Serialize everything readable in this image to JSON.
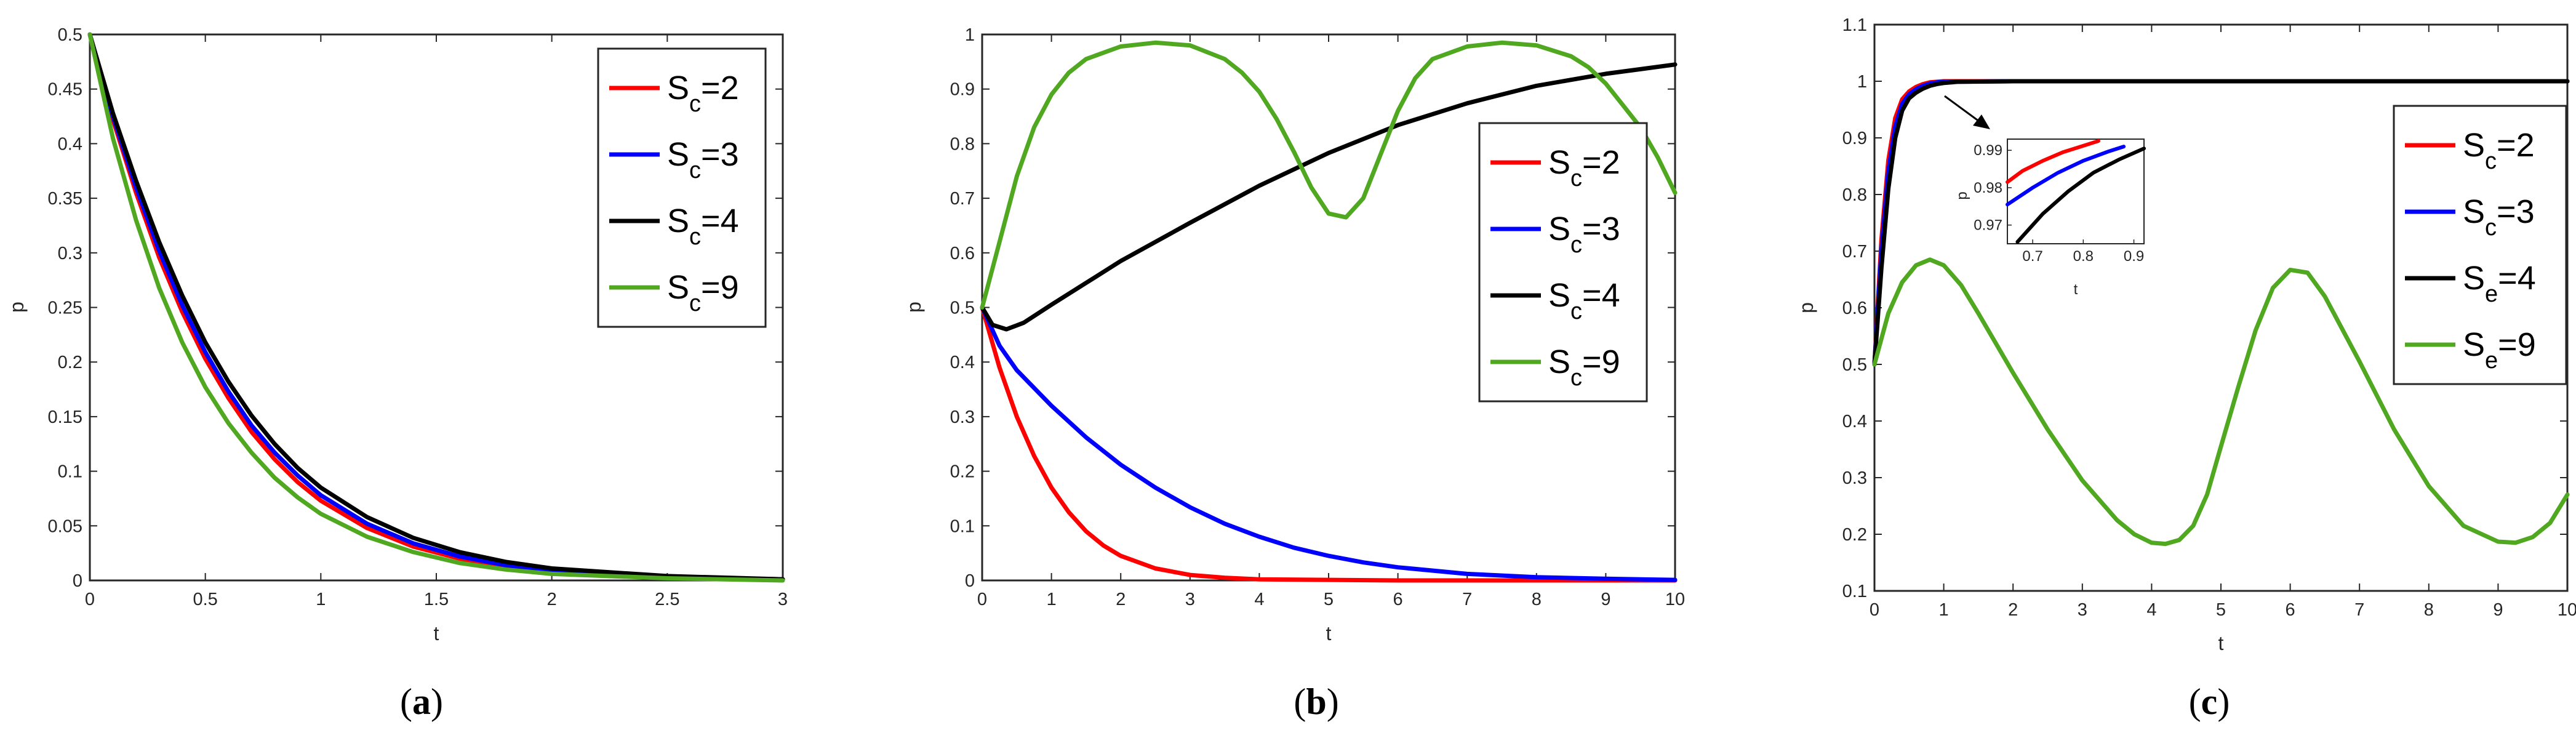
{
  "chart_data": [
    {
      "type": "line",
      "caption_letter": "a",
      "xlabel": "t",
      "ylabel": "p",
      "xlim": [
        0,
        3
      ],
      "ylim": [
        0,
        0.5
      ],
      "xticks": [
        "0",
        "0.5",
        "1",
        "1.5",
        "2",
        "2.5",
        "3"
      ],
      "yticks": [
        "0",
        "0.05",
        "0.1",
        "0.15",
        "0.2",
        "0.25",
        "0.3",
        "0.35",
        "0.4",
        "0.45",
        "0.5"
      ],
      "grid": false,
      "legend": "top-right",
      "legend_prefix": "S",
      "series": [
        {
          "name": "Sc=2",
          "letter": "c",
          "value": "=2",
          "color": "#ff0000",
          "x": [
            0,
            0.1,
            0.2,
            0.3,
            0.4,
            0.5,
            0.6,
            0.7,
            0.8,
            0.9,
            1.0,
            1.2,
            1.4,
            1.6,
            1.8,
            2.0,
            2.5,
            3.0
          ],
          "y": [
            0.5,
            0.422,
            0.355,
            0.296,
            0.246,
            0.203,
            0.167,
            0.136,
            0.111,
            0.09,
            0.073,
            0.048,
            0.031,
            0.02,
            0.013,
            0.008,
            0.003,
            0.001
          ]
        },
        {
          "name": "Sc=3",
          "letter": "c",
          "value": "=3",
          "color": "#0000ff",
          "x": [
            0,
            0.1,
            0.2,
            0.3,
            0.4,
            0.5,
            0.6,
            0.7,
            0.8,
            0.9,
            1.0,
            1.2,
            1.4,
            1.6,
            1.8,
            2.0,
            2.5,
            3.0
          ],
          "y": [
            0.5,
            0.425,
            0.36,
            0.302,
            0.252,
            0.209,
            0.173,
            0.142,
            0.117,
            0.096,
            0.078,
            0.052,
            0.034,
            0.022,
            0.014,
            0.009,
            0.003,
            0.001
          ]
        },
        {
          "name": "Sc=4",
          "letter": "c",
          "value": "=4",
          "color": "#000000",
          "x": [
            0,
            0.1,
            0.2,
            0.3,
            0.4,
            0.5,
            0.6,
            0.7,
            0.8,
            0.9,
            1.0,
            1.2,
            1.4,
            1.6,
            1.8,
            2.0,
            2.5,
            3.0
          ],
          "y": [
            0.5,
            0.428,
            0.366,
            0.31,
            0.261,
            0.218,
            0.182,
            0.151,
            0.125,
            0.103,
            0.085,
            0.058,
            0.039,
            0.026,
            0.017,
            0.011,
            0.004,
            0.001
          ]
        },
        {
          "name": "Sc=9",
          "letter": "c",
          "value": "=9",
          "color": "#4fa81f",
          "x": [
            0,
            0.1,
            0.2,
            0.3,
            0.4,
            0.5,
            0.6,
            0.7,
            0.8,
            0.9,
            1.0,
            1.2,
            1.4,
            1.6,
            1.8,
            2.0,
            2.5,
            3.0
          ],
          "y": [
            0.5,
            0.405,
            0.33,
            0.268,
            0.218,
            0.177,
            0.144,
            0.117,
            0.094,
            0.076,
            0.061,
            0.04,
            0.026,
            0.016,
            0.01,
            0.006,
            0.002,
            0.0
          ]
        }
      ]
    },
    {
      "type": "line",
      "caption_letter": "b",
      "xlabel": "t",
      "ylabel": "p",
      "xlim": [
        0,
        10
      ],
      "ylim": [
        0,
        1
      ],
      "xticks": [
        "0",
        "1",
        "2",
        "3",
        "4",
        "5",
        "6",
        "7",
        "8",
        "9",
        "10"
      ],
      "yticks": [
        "0",
        "0.1",
        "0.2",
        "0.3",
        "0.4",
        "0.5",
        "0.6",
        "0.7",
        "0.8",
        "0.9",
        "1"
      ],
      "grid": false,
      "legend": "right",
      "legend_prefix": "S",
      "series": [
        {
          "name": "Sc=2",
          "letter": "c",
          "value": "=2",
          "color": "#ff0000",
          "x": [
            0,
            0.25,
            0.5,
            0.75,
            1.0,
            1.25,
            1.5,
            1.75,
            2.0,
            2.5,
            3.0,
            3.5,
            4.0,
            5.0,
            6.0,
            7.0,
            8.0,
            9.0,
            10.0
          ],
          "y": [
            0.5,
            0.39,
            0.3,
            0.228,
            0.17,
            0.125,
            0.09,
            0.064,
            0.045,
            0.022,
            0.01,
            0.005,
            0.002,
            0.001,
            0.0,
            0.0,
            0.0,
            0.0,
            0.0
          ]
        },
        {
          "name": "Sc=3",
          "letter": "c",
          "value": "=3",
          "color": "#0000ff",
          "x": [
            0,
            0.25,
            0.5,
            1.0,
            1.5,
            2.0,
            2.5,
            3.0,
            3.5,
            4.0,
            4.5,
            5.0,
            5.5,
            6.0,
            7.0,
            8.0,
            9.0,
            10.0
          ],
          "y": [
            0.5,
            0.43,
            0.385,
            0.32,
            0.262,
            0.212,
            0.17,
            0.134,
            0.104,
            0.08,
            0.06,
            0.045,
            0.033,
            0.024,
            0.012,
            0.006,
            0.003,
            0.001
          ]
        },
        {
          "name": "Sc=4",
          "letter": "c",
          "value": "=4",
          "color": "#000000",
          "x": [
            0,
            0.15,
            0.35,
            0.6,
            1.0,
            1.5,
            2.0,
            3.0,
            4.0,
            5.0,
            6.0,
            7.0,
            8.0,
            9.0,
            10.0
          ],
          "y": [
            0.5,
            0.468,
            0.46,
            0.472,
            0.505,
            0.545,
            0.585,
            0.655,
            0.723,
            0.783,
            0.834,
            0.874,
            0.906,
            0.928,
            0.945
          ]
        },
        {
          "name": "Sc=9",
          "letter": "c",
          "value": "=9",
          "color": "#4fa81f",
          "x": [
            0,
            0.25,
            0.5,
            0.75,
            1.0,
            1.25,
            1.5,
            2.0,
            2.5,
            3.0,
            3.5,
            3.75,
            4.0,
            4.25,
            4.5,
            4.75,
            5.0,
            5.25,
            5.5,
            5.75,
            6.0,
            6.25,
            6.5,
            7.0,
            7.5,
            8.0,
            8.5,
            8.75,
            9.0,
            9.25,
            9.5,
            9.75,
            10.0
          ],
          "y": [
            0.5,
            0.62,
            0.74,
            0.83,
            0.89,
            0.93,
            0.955,
            0.978,
            0.985,
            0.98,
            0.955,
            0.93,
            0.895,
            0.845,
            0.785,
            0.72,
            0.672,
            0.665,
            0.7,
            0.78,
            0.86,
            0.92,
            0.955,
            0.978,
            0.985,
            0.98,
            0.96,
            0.94,
            0.91,
            0.87,
            0.83,
            0.775,
            0.71
          ]
        }
      ]
    },
    {
      "type": "line",
      "caption_letter": "c",
      "xlabel": "t",
      "ylabel": "p",
      "xlim": [
        0,
        10
      ],
      "ylim": [
        0.1,
        1.1
      ],
      "xticks": [
        "0",
        "1",
        "2",
        "3",
        "4",
        "5",
        "6",
        "7",
        "8",
        "9",
        "10"
      ],
      "yticks": [
        "0.1",
        "0.2",
        "0.3",
        "0.4",
        "0.5",
        "0.6",
        "0.7",
        "0.8",
        "0.9",
        "1",
        "1.1"
      ],
      "grid": false,
      "legend": "right",
      "legend_prefix": "S",
      "series": [
        {
          "name": "Sc=2",
          "letter": "c",
          "value": "=2",
          "color": "#ff0000",
          "x": [
            0,
            0.1,
            0.2,
            0.3,
            0.4,
            0.5,
            0.6,
            0.7,
            0.8,
            0.9,
            1.0,
            2.0,
            4.0,
            6.0,
            8.0,
            10.0
          ],
          "y": [
            0.5,
            0.72,
            0.86,
            0.935,
            0.968,
            0.982,
            0.99,
            0.995,
            0.998,
            0.999,
            1.0,
            1.0,
            1.0,
            1.0,
            1.0,
            1.0
          ]
        },
        {
          "name": "Sc=3",
          "letter": "c",
          "value": "=3",
          "color": "#0000ff",
          "x": [
            0,
            0.1,
            0.2,
            0.3,
            0.4,
            0.5,
            0.6,
            0.7,
            0.8,
            0.9,
            1.0,
            2.0,
            4.0,
            6.0,
            8.0,
            10.0
          ],
          "y": [
            0.5,
            0.7,
            0.84,
            0.92,
            0.96,
            0.977,
            0.986,
            0.992,
            0.996,
            0.998,
            0.999,
            1.0,
            1.0,
            1.0,
            1.0,
            1.0
          ]
        },
        {
          "name": "Se=4",
          "letter": "e",
          "value": "=4",
          "color": "#000000",
          "x": [
            0,
            0.1,
            0.2,
            0.3,
            0.4,
            0.5,
            0.6,
            0.7,
            0.8,
            0.9,
            1.0,
            1.2,
            2.0,
            4.0,
            6.0,
            8.0,
            10.0
          ],
          "y": [
            0.5,
            0.67,
            0.81,
            0.9,
            0.948,
            0.97,
            0.98,
            0.987,
            0.992,
            0.995,
            0.997,
            0.999,
            1.0,
            1.0,
            1.0,
            1.0,
            1.0
          ]
        },
        {
          "name": "Se=9",
          "letter": "e",
          "value": "=9",
          "color": "#4fa81f",
          "x": [
            0,
            0.2,
            0.4,
            0.6,
            0.8,
            1.0,
            1.25,
            1.5,
            2.0,
            2.5,
            3.0,
            3.5,
            3.75,
            4.0,
            4.2,
            4.4,
            4.6,
            4.8,
            5.0,
            5.25,
            5.5,
            5.75,
            6.0,
            6.25,
            6.5,
            7.0,
            7.5,
            8.0,
            8.5,
            9.0,
            9.25,
            9.5,
            9.75,
            10.0
          ],
          "y": [
            0.5,
            0.59,
            0.645,
            0.675,
            0.685,
            0.675,
            0.64,
            0.59,
            0.485,
            0.385,
            0.295,
            0.225,
            0.2,
            0.185,
            0.183,
            0.19,
            0.215,
            0.27,
            0.355,
            0.46,
            0.56,
            0.635,
            0.667,
            0.662,
            0.62,
            0.505,
            0.385,
            0.285,
            0.215,
            0.187,
            0.185,
            0.195,
            0.22,
            0.27
          ]
        }
      ],
      "inset": {
        "xlabel": "t",
        "ylabel": "p",
        "xlim": [
          0.65,
          0.92
        ],
        "ylim": [
          0.965,
          0.993
        ],
        "xticks": [
          "0.7",
          "0.8",
          "0.9"
        ],
        "yticks": [
          "0.97",
          "0.98",
          "0.99"
        ],
        "series": [
          {
            "color": "#ff0000",
            "x": [
              0.65,
              0.68,
              0.72,
              0.76,
              0.8,
              0.83
            ],
            "y": [
              0.9815,
              0.9845,
              0.9872,
              0.9895,
              0.9912,
              0.9925
            ]
          },
          {
            "color": "#0000ff",
            "x": [
              0.65,
              0.7,
              0.75,
              0.8,
              0.85,
              0.88
            ],
            "y": [
              0.9755,
              0.98,
              0.984,
              0.9872,
              0.9897,
              0.991
            ]
          },
          {
            "color": "#000000",
            "x": [
              0.67,
              0.72,
              0.77,
              0.82,
              0.87,
              0.92
            ],
            "y": [
              0.9655,
              0.973,
              0.979,
              0.984,
              0.9875,
              0.9905
            ]
          }
        ]
      }
    }
  ]
}
